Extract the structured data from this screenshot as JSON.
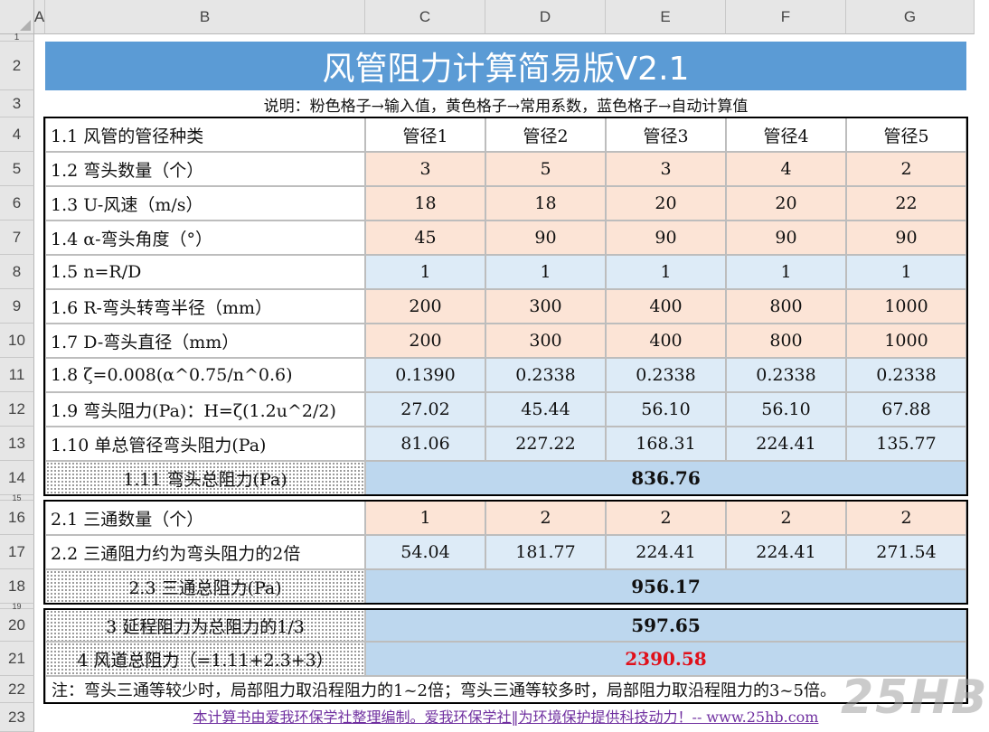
{
  "columns": [
    "A",
    "B",
    "C",
    "D",
    "E",
    "F",
    "G"
  ],
  "rows": [
    "1",
    "2",
    "3",
    "4",
    "5",
    "6",
    "7",
    "8",
    "9",
    "10",
    "11",
    "12",
    "13",
    "14",
    "15",
    "16",
    "17",
    "18",
    "19",
    "20",
    "21",
    "22",
    "23"
  ],
  "title": "风管阻力计算简易版V2.1",
  "note": "说明：粉色格子→输入值，黄色格子→常用系数，蓝色格子→自动计算值",
  "table": [
    {
      "label": "1.1 风管的管径种类",
      "values": [
        "管径1",
        "管径2",
        "管径3",
        "管径4",
        "管径5"
      ],
      "style": "white"
    },
    {
      "label": "1.2 弯头数量（个）",
      "values": [
        "3",
        "5",
        "3",
        "4",
        "2"
      ],
      "style": "pink"
    },
    {
      "label": "1.3 U-风速（m/s）",
      "values": [
        "18",
        "18",
        "20",
        "20",
        "22"
      ],
      "style": "pink"
    },
    {
      "label": "1.4 α-弯头角度（°）",
      "values": [
        "45",
        "90",
        "90",
        "90",
        "90"
      ],
      "style": "pink"
    },
    {
      "label": "1.5 n=R/D",
      "values": [
        "1",
        "1",
        "1",
        "1",
        "1"
      ],
      "style": "blue"
    },
    {
      "label": "1.6 R-弯头转弯半径（mm）",
      "values": [
        "200",
        "300",
        "400",
        "800",
        "1000"
      ],
      "style": "pink"
    },
    {
      "label": "1.7 D-弯头直径（mm）",
      "values": [
        "200",
        "300",
        "400",
        "800",
        "1000"
      ],
      "style": "pink"
    },
    {
      "label": "1.8 ζ=0.008(α^0.75/n^0.6)",
      "values": [
        "0.1390",
        "0.2338",
        "0.2338",
        "0.2338",
        "0.2338"
      ],
      "style": "blue"
    },
    {
      "label": "1.9 弯头阻力(Pa)：H=ζ(1.2u^2/2)",
      "values": [
        "27.02",
        "45.44",
        "56.10",
        "56.10",
        "67.88"
      ],
      "style": "blue"
    },
    {
      "label": "1.10 单总管径弯头阻力(Pa)",
      "values": [
        "81.06",
        "227.22",
        "168.31",
        "224.41",
        "135.77"
      ],
      "style": "blue"
    }
  ],
  "total_1_11": {
    "label": "1.11 弯头总阻力(Pa)",
    "value": "836.76"
  },
  "tee_rows": [
    {
      "label": "2.1 三通数量（个）",
      "values": [
        "1",
        "2",
        "2",
        "2",
        "2"
      ],
      "style": "pink"
    },
    {
      "label": "2.2 三通阻力约为弯头阻力的2倍",
      "values": [
        "54.04",
        "181.77",
        "224.41",
        "224.41",
        "271.54"
      ],
      "style": "blue"
    }
  ],
  "total_2_3": {
    "label": "2.3 三通总阻力(Pa)",
    "value": "956.17"
  },
  "total_3": {
    "label": "3 延程阻力为总阻力的1/3",
    "value": "597.65"
  },
  "total_4": {
    "label": "4 风道总阻力（=1.11+2.3+3）",
    "value": "2390.58",
    "color": "#e0101a"
  },
  "note22": "注：弯头三通等较少时，局部阻力取沿程阻力的1~2倍；弯头三通等较多时，局部阻力取沿程阻力的3~5倍。",
  "footer": "本计算书由爱我环保学社整理编制。爱我环保学社‖为环境保护提供科技动力！-- www.25hb.com",
  "watermark": "25HB",
  "colors": {
    "title_bg": "#5b9bd5",
    "pink": "#fce4d6",
    "blue": "#ddebf7",
    "total": "#bdd7ee"
  }
}
